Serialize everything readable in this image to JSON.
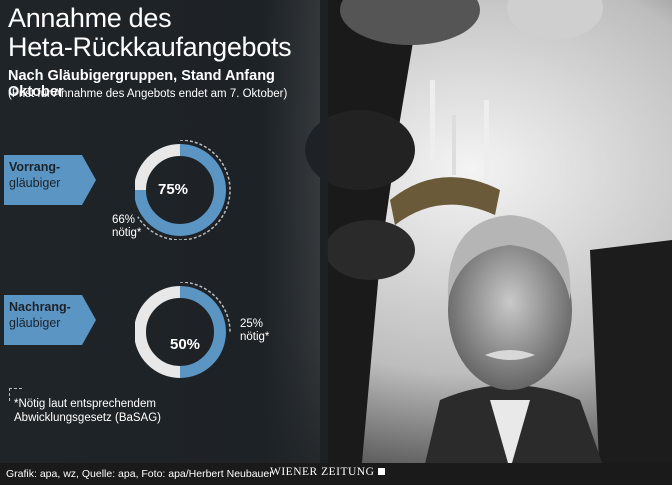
{
  "header": {
    "title_line1": "Annahme des",
    "title_line2": "Heta-Rückkaufangebots",
    "subtitle": "Nach Gläubigergruppen, Stand Anfang Oktober",
    "note": "(Frist für Annahme des Angebots endet am 7. Oktober)"
  },
  "chart_data": [
    {
      "type": "pie",
      "group_line1": "Vorrang-",
      "group_line2": "gläubiger",
      "value": 75,
      "value_label": "75%",
      "required": 66,
      "required_label_line1": "66%",
      "required_label_line2": "nötig*"
    },
    {
      "type": "pie",
      "group_line1": "Nachrang-",
      "group_line2": "gläubiger",
      "value": 50,
      "value_label": "50%",
      "required": 25,
      "required_label_line1": "25%",
      "required_label_line2": "nötig*"
    }
  ],
  "footnote": {
    "line1": "*Nötig laut entsprechendem",
    "line2": "Abwicklungsgesetz (BaSAG)"
  },
  "credit": {
    "text": "Grafik: apa, wz, Quelle: apa, Foto: apa/Herbert Neubauer",
    "brand": "WIENER ZEITUNG"
  },
  "colors": {
    "accent": "#5b95c4",
    "panel": "#1d2226",
    "ring_rest": "#e8e8e8"
  }
}
